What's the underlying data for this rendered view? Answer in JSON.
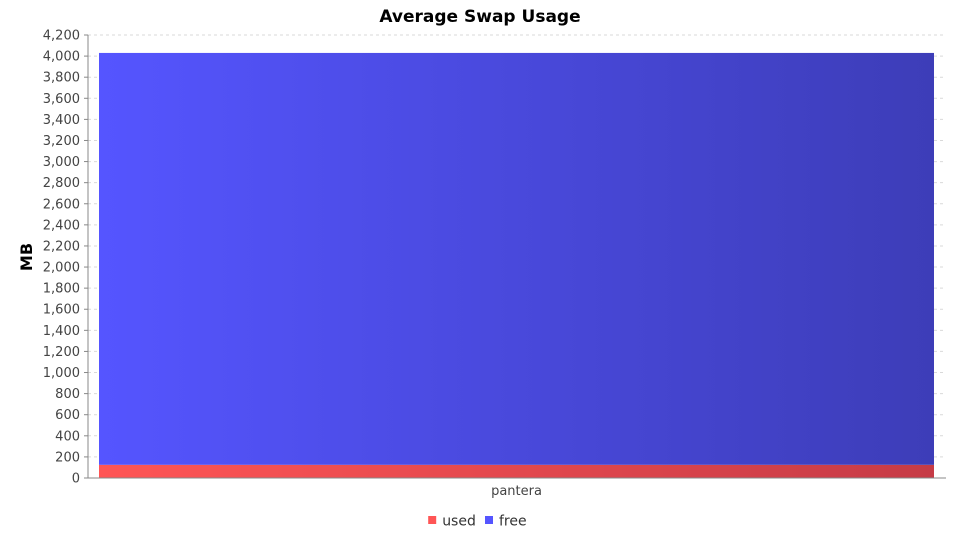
{
  "chart_data": {
    "type": "bar",
    "stacked": true,
    "title": "Average Swap Usage",
    "xlabel": "",
    "ylabel": "MB",
    "categories": [
      "pantera"
    ],
    "series": [
      {
        "name": "used",
        "values": [
          125
        ],
        "color": "#ff5555"
      },
      {
        "name": "free",
        "values": [
          3905
        ],
        "color": "#5555ff"
      }
    ],
    "ylim": [
      0,
      4200
    ],
    "yticks": [
      0,
      200,
      400,
      600,
      800,
      1000,
      1200,
      1400,
      1600,
      1800,
      2000,
      2200,
      2400,
      2600,
      2800,
      3000,
      3200,
      3400,
      3600,
      3800,
      4000,
      4200
    ],
    "ytick_labels": [
      "0",
      "200",
      "400",
      "600",
      "800",
      "1,000",
      "1,200",
      "1,400",
      "1,600",
      "1,800",
      "2,000",
      "2,200",
      "2,400",
      "2,600",
      "2,800",
      "3,000",
      "3,200",
      "3,400",
      "3,600",
      "3,800",
      "4,000",
      "4,200"
    ],
    "grid": true,
    "legend_position": "bottom"
  }
}
